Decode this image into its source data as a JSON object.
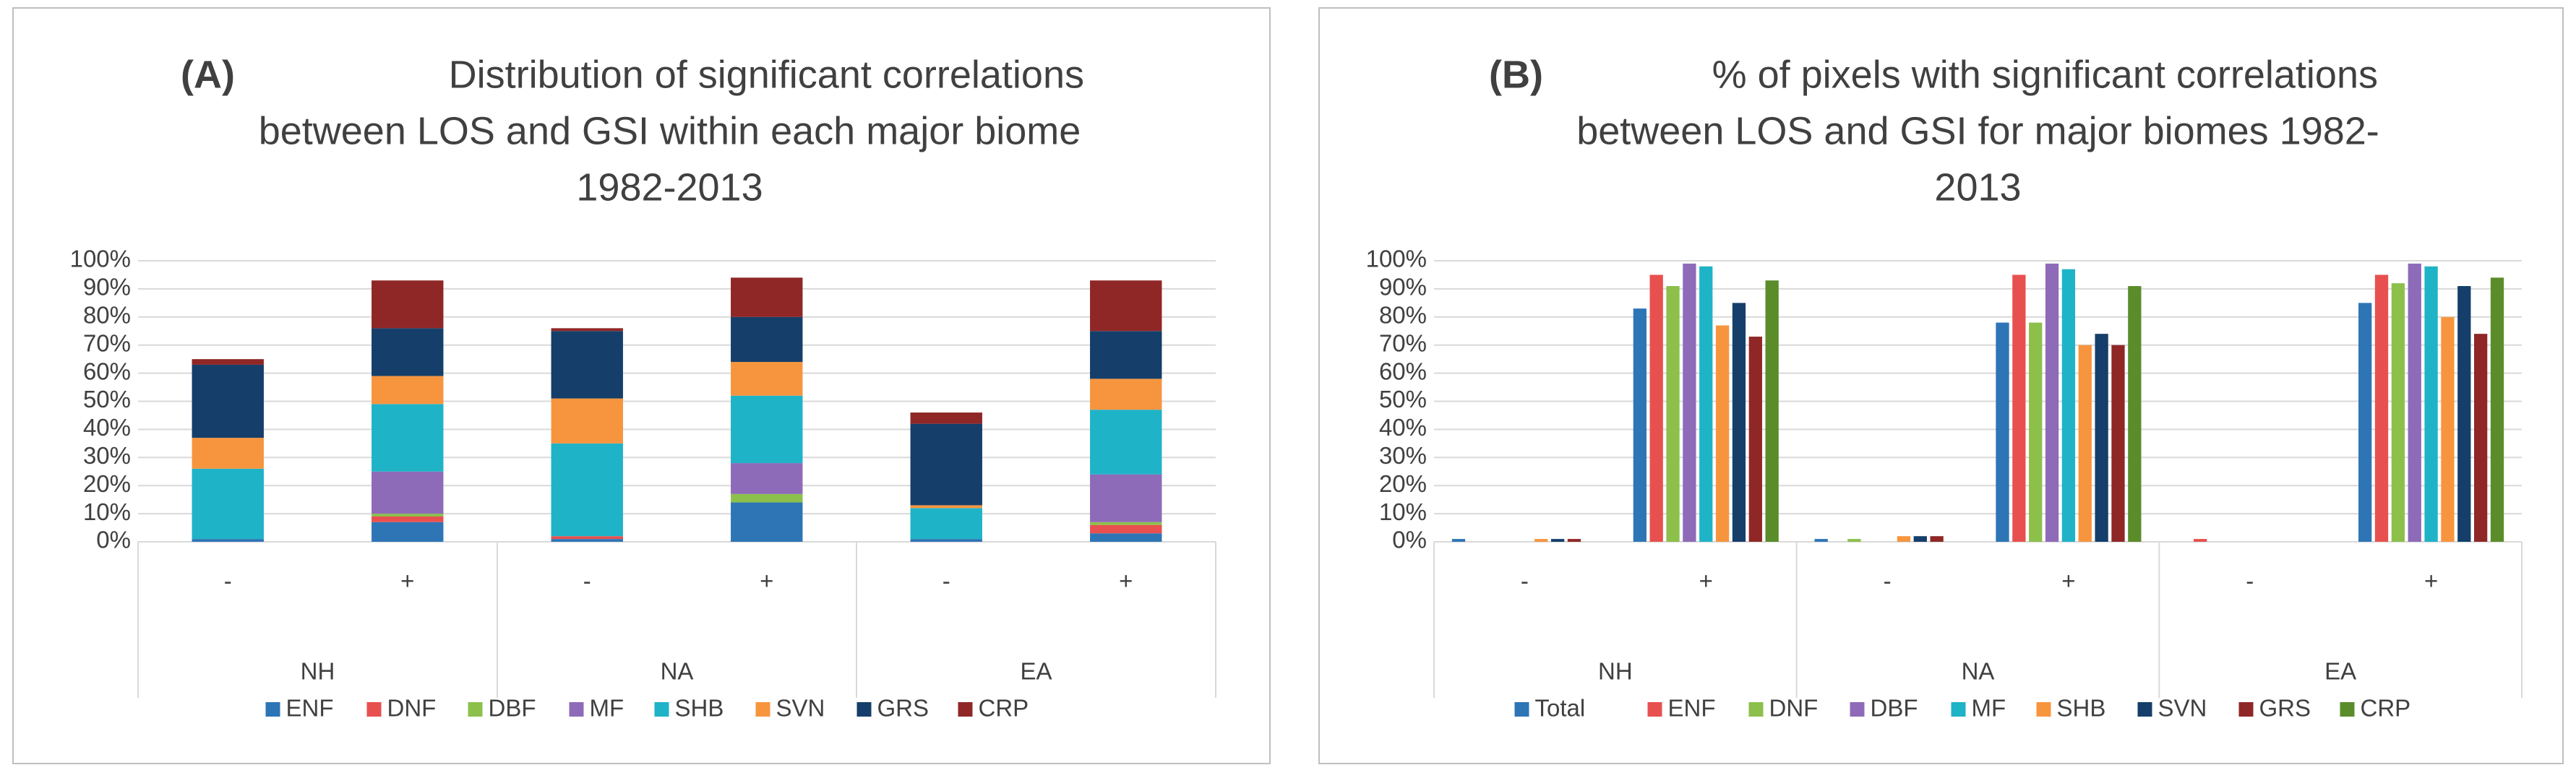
{
  "chart_data": [
    {
      "type": "stacked_bar",
      "panel_label": "(A)",
      "title": [
        "Distribution of significant correlations",
        "between LOS and GSI within each major biome",
        "1982-2013"
      ],
      "categories": [
        "-",
        "+",
        "-",
        "+",
        "-",
        "+"
      ],
      "groups": [
        "NH",
        "NA",
        "EA"
      ],
      "ylim": [
        0,
        100
      ],
      "yticks": [
        {
          "value": 0,
          "label": "0%"
        },
        {
          "value": 10,
          "label": "10%"
        },
        {
          "value": 20,
          "label": "20%"
        },
        {
          "value": 30,
          "label": "30%"
        },
        {
          "value": 40,
          "label": "40%"
        },
        {
          "value": 50,
          "label": "50%"
        },
        {
          "value": 60,
          "label": "60%"
        },
        {
          "value": 70,
          "label": "70%"
        },
        {
          "value": 80,
          "label": "80%"
        },
        {
          "value": 90,
          "label": "90%"
        },
        {
          "value": 100,
          "label": "100%"
        }
      ],
      "grid": true,
      "series": [
        {
          "name": "ENF",
          "color": "#2e75b6",
          "values": [
            1,
            7,
            1,
            14,
            1,
            3
          ]
        },
        {
          "name": "DNF",
          "color": "#e8504f",
          "values": [
            0,
            2,
            1,
            0,
            0,
            3
          ]
        },
        {
          "name": "DBF",
          "color": "#8cc04b",
          "values": [
            0,
            1,
            0,
            3,
            0,
            1
          ]
        },
        {
          "name": "MF",
          "color": "#8e6bb8",
          "values": [
            0,
            15,
            0,
            11,
            0,
            17
          ]
        },
        {
          "name": "SHB",
          "color": "#1fb3c8",
          "values": [
            25,
            24,
            33,
            24,
            11,
            23
          ]
        },
        {
          "name": "SVN",
          "color": "#f7953f",
          "values": [
            11,
            10,
            16,
            12,
            1,
            11
          ]
        },
        {
          "name": "GRS",
          "color": "#153f6a",
          "values": [
            26,
            17,
            24,
            16,
            29,
            17
          ]
        },
        {
          "name": "CRP",
          "color": "#8f2727",
          "values": [
            2,
            17,
            1,
            14,
            4,
            18
          ]
        }
      ]
    },
    {
      "type": "bar",
      "panel_label": "(B)",
      "title": [
        "% of pixels with significant correlations",
        "between LOS and GSI for major biomes 1982-",
        "2013"
      ],
      "categories": [
        "-",
        "+",
        "-",
        "+",
        "-",
        "+"
      ],
      "groups": [
        "NH",
        "NA",
        "EA"
      ],
      "ylim": [
        0,
        100
      ],
      "yticks": [
        {
          "value": 0,
          "label": "0%"
        },
        {
          "value": 10,
          "label": "10%"
        },
        {
          "value": 20,
          "label": "20%"
        },
        {
          "value": 30,
          "label": "30%"
        },
        {
          "value": 40,
          "label": "40%"
        },
        {
          "value": 50,
          "label": "50%"
        },
        {
          "value": 60,
          "label": "60%"
        },
        {
          "value": 70,
          "label": "70%"
        },
        {
          "value": 80,
          "label": "80%"
        },
        {
          "value": 90,
          "label": "90%"
        },
        {
          "value": 100,
          "label": "100%"
        }
      ],
      "grid": true,
      "series": [
        {
          "name": "Total",
          "color": "#2e75b6",
          "values": [
            1,
            83,
            1,
            78,
            0,
            85
          ]
        },
        {
          "name": "ENF",
          "color": "#e8504f",
          "values": [
            0,
            95,
            0,
            95,
            1,
            95
          ]
        },
        {
          "name": "DNF",
          "color": "#8cc04b",
          "values": [
            0,
            91,
            1,
            78,
            0,
            92
          ]
        },
        {
          "name": "DBF",
          "color": "#8e6bb8",
          "values": [
            0,
            99,
            0,
            99,
            0,
            99
          ]
        },
        {
          "name": "MF",
          "color": "#1fb3c8",
          "values": [
            0,
            98,
            0,
            97,
            0,
            98
          ]
        },
        {
          "name": "SHB",
          "color": "#f7953f",
          "values": [
            1,
            77,
            2,
            70,
            0,
            80
          ]
        },
        {
          "name": "SVN",
          "color": "#153f6a",
          "values": [
            1,
            85,
            2,
            74,
            0,
            91
          ]
        },
        {
          "name": "GRS",
          "color": "#8f2727",
          "values": [
            1,
            73,
            2,
            70,
            0,
            74
          ]
        },
        {
          "name": "CRP",
          "color": "#5b8c2a",
          "values": [
            0,
            93,
            0,
            91,
            0,
            94
          ]
        }
      ]
    }
  ]
}
